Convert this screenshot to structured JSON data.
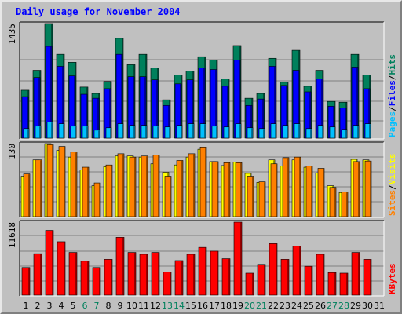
{
  "title": "Daily usage for November 2004",
  "colors": {
    "hits": "#00805c",
    "files": "#0000ff",
    "pages": "#00c0ff",
    "visits": "#ffff00",
    "sites": "#ff8000",
    "kbytes": "#ff0000",
    "title": "#0000ff",
    "weekend": "#00805c",
    "weekday": "#000000",
    "background": "#c0c0c0",
    "grid": "#808080"
  },
  "weekend_days": [
    6,
    7,
    13,
    14,
    20,
    21,
    27,
    28
  ],
  "chart_data": [
    {
      "type": "bar",
      "name": "hits-files-pages",
      "ymax_label": "1435",
      "ylim": [
        0,
        1435
      ],
      "series_labels": [
        "Pages",
        "Files",
        "Hits"
      ],
      "series_label_separator": "/",
      "x": [
        1,
        2,
        3,
        4,
        5,
        6,
        7,
        8,
        9,
        10,
        11,
        12,
        13,
        14,
        15,
        16,
        17,
        18,
        19,
        20,
        21,
        22,
        23,
        24,
        25,
        26,
        27,
        28,
        29,
        30,
        31
      ],
      "series": [
        {
          "name": "Hits",
          "values": [
            600,
            850,
            1435,
            1050,
            950,
            640,
            560,
            710,
            1250,
            920,
            1050,
            880,
            480,
            790,
            840,
            1020,
            980,
            740,
            1160,
            500,
            560,
            1000,
            700,
            1100,
            650,
            850,
            460,
            450,
            1050,
            790,
            0
          ]
        },
        {
          "name": "Files",
          "values": [
            520,
            760,
            1150,
            900,
            780,
            550,
            500,
            620,
            1050,
            770,
            770,
            730,
            410,
            680,
            730,
            880,
            860,
            650,
            980,
            410,
            490,
            900,
            660,
            850,
            580,
            740,
            400,
            380,
            890,
            620,
            0
          ]
        },
        {
          "name": "Pages",
          "values": [
            120,
            150,
            200,
            180,
            150,
            150,
            100,
            130,
            180,
            160,
            160,
            150,
            140,
            160,
            180,
            180,
            150,
            140,
            180,
            130,
            120,
            180,
            160,
            180,
            120,
            160,
            140,
            110,
            160,
            180,
            0
          ]
        }
      ]
    },
    {
      "type": "bar",
      "name": "visits-sites",
      "ymax_label": "130",
      "ylim": [
        0,
        130
      ],
      "series_labels": [
        "Sites",
        "Visits"
      ],
      "series_label_separator": "/",
      "x": [
        1,
        2,
        3,
        4,
        5,
        6,
        7,
        8,
        9,
        10,
        11,
        12,
        13,
        14,
        15,
        16,
        17,
        18,
        19,
        20,
        21,
        22,
        23,
        24,
        25,
        26,
        27,
        28,
        29,
        30,
        31
      ],
      "series": [
        {
          "name": "Visits",
          "values": [
            72,
            101,
            130,
            118,
            106,
            83,
            55,
            89,
            108,
            108,
            106,
            94,
            79,
            92,
            106,
            120,
            98,
            91,
            97,
            77,
            61,
            101,
            90,
            101,
            88,
            78,
            55,
            43,
            102,
            101,
            0
          ]
        },
        {
          "name": "Sites",
          "values": [
            76,
            101,
            128,
            125,
            115,
            88,
            60,
            92,
            112,
            106,
            108,
            110,
            72,
            100,
            112,
            124,
            98,
            96,
            96,
            72,
            62,
            94,
            105,
            106,
            90,
            86,
            52,
            44,
            98,
            99,
            0
          ]
        }
      ]
    },
    {
      "type": "bar",
      "name": "kbytes",
      "ymax_label": "11618",
      "ylim": [
        0,
        11618
      ],
      "series_labels": [
        "KBytes"
      ],
      "x": [
        1,
        2,
        3,
        4,
        5,
        6,
        7,
        8,
        9,
        10,
        11,
        12,
        13,
        14,
        15,
        16,
        17,
        18,
        19,
        20,
        21,
        22,
        23,
        24,
        25,
        26,
        27,
        28,
        29,
        30,
        31
      ],
      "series": [
        {
          "name": "KBytes",
          "values": [
            4400,
            6600,
            10300,
            8500,
            6800,
            5400,
            4400,
            5700,
            9200,
            6800,
            6500,
            6800,
            3700,
            5500,
            6500,
            7600,
            7000,
            5800,
            11618,
            3500,
            4900,
            8200,
            5700,
            7800,
            4600,
            6500,
            3600,
            3500,
            6800,
            5700,
            0
          ]
        }
      ]
    }
  ],
  "x_labels": [
    "1",
    "2",
    "3",
    "4",
    "5",
    "6",
    "7",
    "8",
    "9",
    "10",
    "11",
    "12",
    "13",
    "14",
    "15",
    "16",
    "17",
    "18",
    "19",
    "20",
    "21",
    "22",
    "23",
    "24",
    "25",
    "26",
    "27",
    "28",
    "29",
    "30",
    "31"
  ]
}
